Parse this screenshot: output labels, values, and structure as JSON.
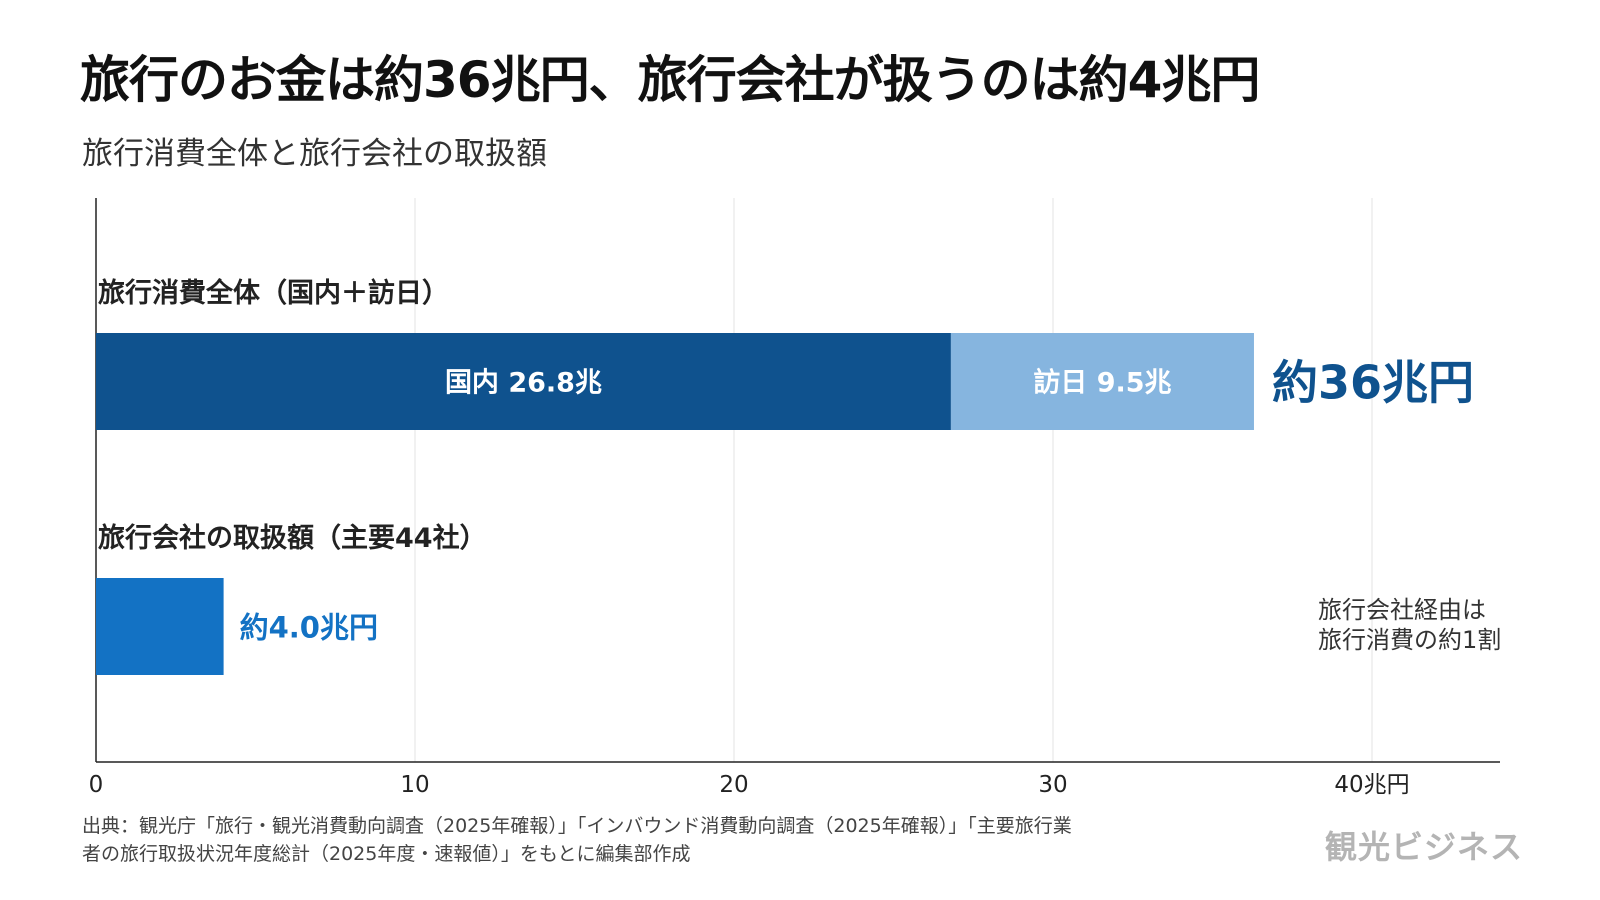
{
  "header": {
    "title": "旅行のお金は約36兆円、旅行会社が扱うのは約4兆円",
    "subtitle": "旅行消費全体と旅行会社の取扱額"
  },
  "chart_data": {
    "type": "bar",
    "orientation": "horizontal",
    "stacked": true,
    "xlim": [
      0,
      44
    ],
    "x_ticks": [
      {
        "value": 0,
        "label": "0"
      },
      {
        "value": 10,
        "label": "10"
      },
      {
        "value": 20,
        "label": "20"
      },
      {
        "value": 30,
        "label": "30"
      },
      {
        "value": 40,
        "label": "40兆円"
      }
    ],
    "grid": true,
    "bars": [
      {
        "category": "旅行消費全体（国内＋訪日）",
        "total_label": "約36兆円",
        "segments": [
          {
            "name": "国内",
            "value": 26.8,
            "label": "国内 26.8兆",
            "color": "#0f528e",
            "label_color": "#ffffff"
          },
          {
            "name": "訪日",
            "value": 9.5,
            "label": "訪日 9.5兆",
            "color": "#86b5df",
            "label_color": "#ffffff"
          }
        ],
        "total_color": "#0f528e"
      },
      {
        "category": "旅行会社の取扱額（主要44社）",
        "total_label": "約4.0兆円",
        "segments": [
          {
            "name": "旅行会社",
            "value": 4.0,
            "label": "",
            "color": "#1372c4",
            "label_color": "#ffffff"
          }
        ],
        "total_color": "#1372c4"
      }
    ],
    "annotation": [
      "旅行会社経由は",
      "旅行消費の約1割"
    ]
  },
  "footer": {
    "source_line1": "出典：観光庁「旅行・観光消費動向調査（2025年確報）」「インバウンド消費動向調査（2025年確報）」「主要旅行業",
    "source_line2": "者の旅行取扱状況年度総計（2025年度・速報値）」をもとに編集部作成",
    "logo": "観光ビジネス"
  }
}
